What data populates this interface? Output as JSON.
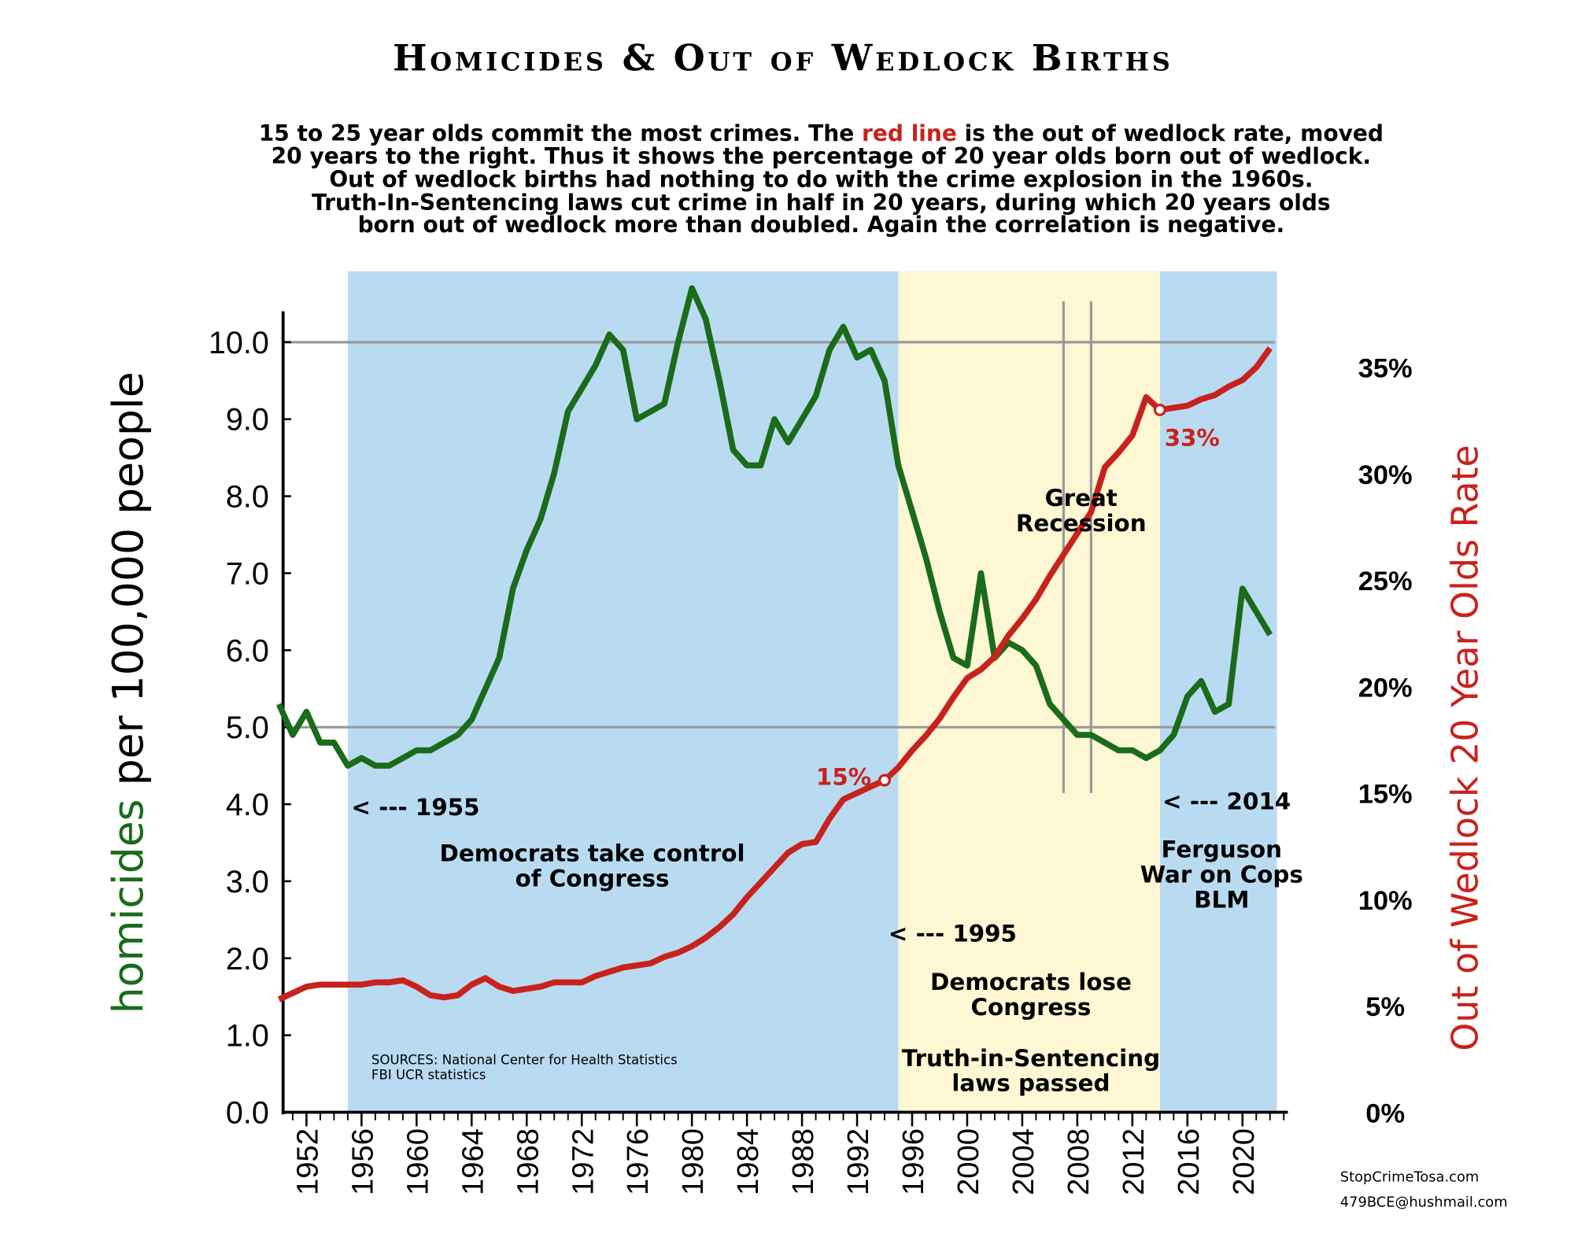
{
  "chart_data": {
    "type": "line",
    "title": "Homicides & Out of Wedlock Births",
    "subtitle": [
      [
        "15 to 25 year olds commit the most crimes. The ",
        "red line",
        " is the out of wedlock rate, moved"
      ],
      "20 years to the right. Thus it shows the percentage of 20 year olds born out of wedlock.",
      "Out of wedlock births had nothing to do with the crime explosion in the 1960s.",
      "Truth-In-Sentencing laws cut crime in half in 20 years, during which 20 years olds",
      "born out of wedlock more than doubled. Again the correlation is negative."
    ],
    "ylabel": [
      "homicides",
      " per 100,000 people"
    ],
    "y2label": "Out of Wedlock 20 Year Olds Rate",
    "x": [
      1950,
      1951,
      1952,
      1953,
      1954,
      1955,
      1956,
      1957,
      1958,
      1959,
      1960,
      1961,
      1962,
      1963,
      1964,
      1965,
      1966,
      1967,
      1968,
      1969,
      1970,
      1971,
      1972,
      1973,
      1974,
      1975,
      1976,
      1977,
      1978,
      1979,
      1980,
      1981,
      1982,
      1983,
      1984,
      1985,
      1986,
      1987,
      1988,
      1989,
      1990,
      1991,
      1992,
      1993,
      1994,
      1995,
      1996,
      1997,
      1998,
      1999,
      2000,
      2001,
      2002,
      2003,
      2004,
      2005,
      2006,
      2007,
      2008,
      2009,
      2010,
      2011,
      2012,
      2013,
      2014,
      2015,
      2016,
      2017,
      2018,
      2019,
      2020,
      2021,
      2022
    ],
    "series": [
      {
        "name": "homicides",
        "color": "#1a6b1a",
        "axis": "y",
        "values": [
          5.3,
          4.9,
          5.2,
          4.8,
          4.8,
          4.5,
          4.6,
          4.5,
          4.5,
          4.6,
          4.7,
          4.7,
          4.8,
          4.9,
          5.1,
          5.5,
          5.9,
          6.8,
          7.3,
          7.7,
          8.3,
          9.1,
          9.4,
          9.7,
          10.1,
          9.9,
          9.0,
          9.1,
          9.2,
          10.0,
          10.7,
          10.3,
          9.5,
          8.6,
          8.4,
          8.4,
          9.0,
          8.7,
          9.0,
          9.3,
          9.9,
          10.2,
          9.8,
          9.9,
          9.5,
          8.4,
          7.8,
          7.2,
          6.5,
          5.9,
          5.8,
          7.0,
          5.9,
          6.1,
          6.0,
          5.8,
          5.3,
          5.1,
          4.9,
          4.9,
          4.8,
          4.7,
          4.7,
          4.6,
          4.7,
          4.9,
          5.4,
          5.6,
          5.2,
          5.3,
          6.8,
          6.5,
          6.2
        ]
      },
      {
        "name": "Out of Wedlock 20 Year Olds Rate",
        "color": "#c8221c",
        "axis": "y2",
        "values": [
          5.3,
          5.6,
          5.9,
          6.0,
          6.0,
          6.0,
          6.0,
          6.1,
          6.1,
          6.2,
          5.9,
          5.5,
          5.4,
          5.5,
          6.0,
          6.3,
          5.9,
          5.7,
          5.8,
          5.9,
          6.1,
          6.1,
          6.1,
          6.4,
          6.6,
          6.8,
          6.9,
          7.0,
          7.3,
          7.5,
          7.8,
          8.2,
          8.7,
          9.3,
          10.1,
          10.8,
          11.5,
          12.2,
          12.6,
          12.7,
          13.8,
          14.7,
          15.0,
          15.3,
          15.6,
          16.2,
          17.0,
          17.7,
          18.5,
          19.5,
          20.4,
          20.8,
          21.4,
          22.4,
          23.2,
          24.1,
          25.2,
          26.2,
          27.2,
          28.2,
          30.3,
          31.0,
          31.8,
          33.6,
          33.0,
          33.1,
          33.2,
          33.5,
          33.7,
          34.1,
          34.4,
          35.0,
          35.9
        ]
      }
    ],
    "xlim": [
      1950.3,
      2023.3
    ],
    "xticks": [
      1952,
      1956,
      1960,
      1964,
      1968,
      1972,
      1976,
      1980,
      1984,
      1988,
      1992,
      1996,
      2000,
      2004,
      2008,
      2012,
      2016,
      2020
    ],
    "ylim": [
      0,
      11
    ],
    "yticks": [
      {
        "value": 0,
        "label": "0.0"
      },
      {
        "value": 1,
        "label": "1.0"
      },
      {
        "value": 2,
        "label": "2.0"
      },
      {
        "value": 3,
        "label": "3.0"
      },
      {
        "value": 4,
        "label": "4.0"
      },
      {
        "value": 5,
        "label": "5.0"
      },
      {
        "value": 6,
        "label": "6.0"
      },
      {
        "value": 7,
        "label": "7.0"
      },
      {
        "value": 8,
        "label": "8.0"
      },
      {
        "value": 9,
        "label": "9.0"
      },
      {
        "value": 10,
        "label": "10.0"
      }
    ],
    "y2lim": [
      0,
      39.8
    ],
    "y2ticks": [
      {
        "value": 0,
        "label": "0%"
      },
      {
        "value": 5,
        "label": "5%"
      },
      {
        "value": 10,
        "label": "10%"
      },
      {
        "value": 15,
        "label": "15%"
      },
      {
        "value": 20,
        "label": "20%"
      },
      {
        "value": 25,
        "label": "25%"
      },
      {
        "value": 30,
        "label": "30%"
      },
      {
        "value": 35,
        "label": "35%"
      }
    ],
    "grid_at": [
      5,
      10
    ],
    "shaded_regions": [
      {
        "start": 1955,
        "end": 1995,
        "color": "#b9dbf2"
      },
      {
        "start": 1995,
        "end": 2014,
        "color": "#fdf7d3"
      },
      {
        "start": 2014,
        "end": 2022.5,
        "color": "#b9dbf2"
      }
    ],
    "vlines": [
      2007,
      2009
    ],
    "annotations": [
      [
        "< --- 1955"
      ],
      [
        "Democrats take control",
        "of Congress"
      ],
      [
        "< --- 1995"
      ],
      [
        "Democrats lose",
        "Congress"
      ],
      [
        "Truth-in-Sentencing",
        "laws passed"
      ],
      [
        "Great",
        "Recession"
      ],
      [
        "< --- 2014"
      ],
      [
        "Ferguson",
        "War on Cops",
        "BLM"
      ],
      [
        "15%"
      ],
      [
        "33%"
      ]
    ],
    "sources": [
      "SOURCES: National Center for Health Statistics",
      "FBI UCR statistics"
    ],
    "footer": [
      "StopCrimeTosa.com",
      "479BCE@hushmail.com"
    ]
  }
}
